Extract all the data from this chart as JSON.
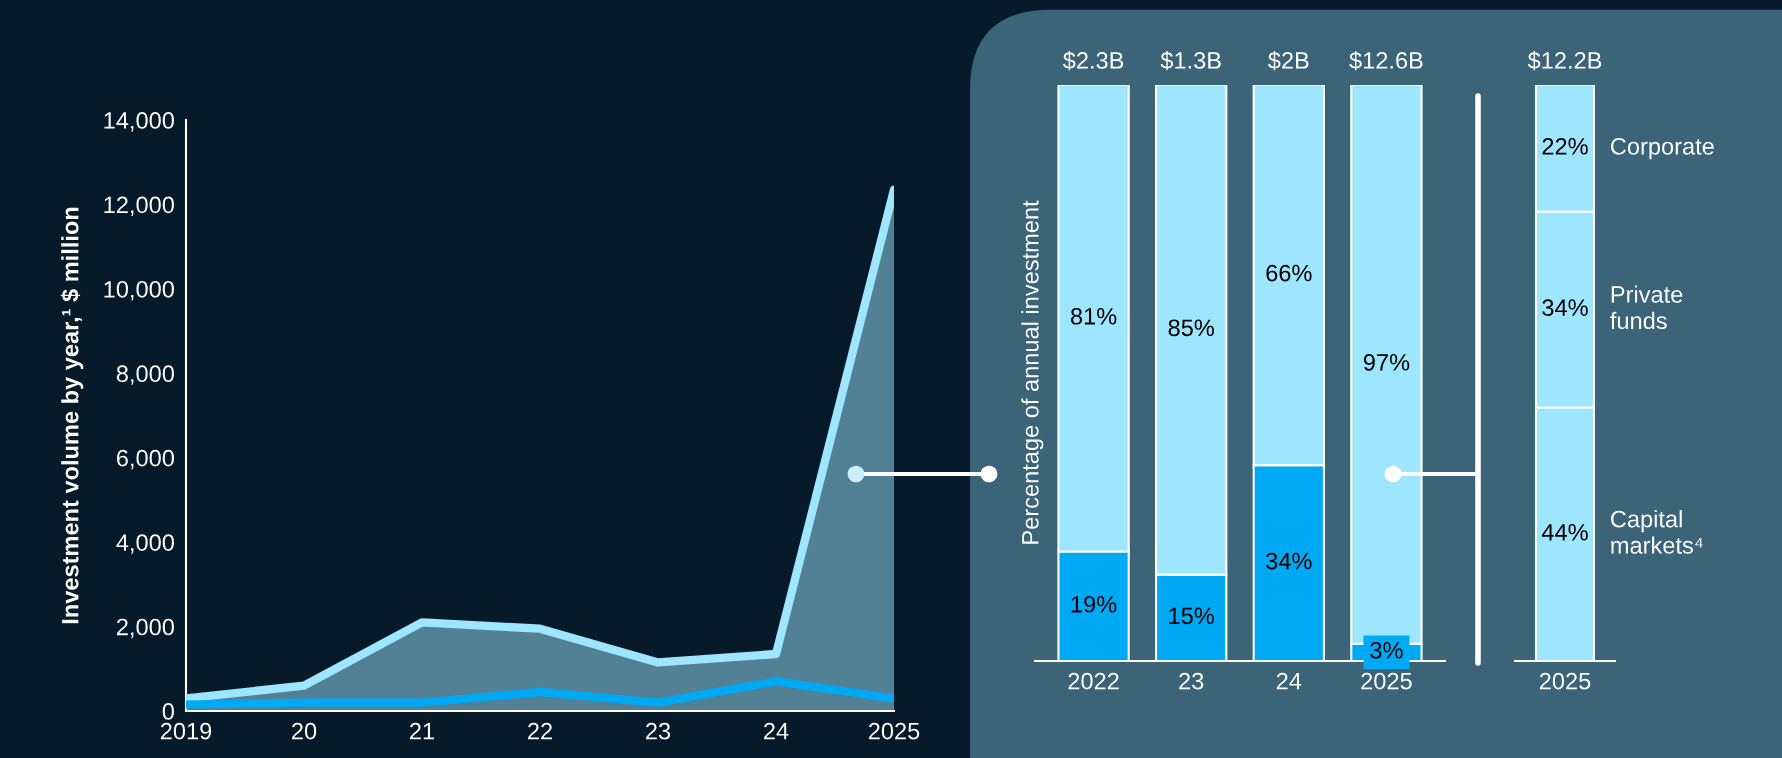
{
  "chart_data": [
    {
      "type": "line",
      "ylabel": "Investment volume by year,¹ $ million",
      "x": [
        2019,
        2020,
        2021,
        2022,
        2023,
        2024,
        2025
      ],
      "xlim": [
        2019,
        2025
      ],
      "xticks": [
        {
          "value": 2019,
          "label": "2019"
        },
        {
          "value": 2020,
          "label": "20"
        },
        {
          "value": 2021,
          "label": "21"
        },
        {
          "value": 2022,
          "label": "22"
        },
        {
          "value": 2023,
          "label": "23"
        },
        {
          "value": 2024,
          "label": "24"
        },
        {
          "value": 2025,
          "label": "2025"
        }
      ],
      "ylim": [
        0,
        14000
      ],
      "yticks": [
        0,
        {
          "value": 2000,
          "label": "2,000"
        },
        {
          "value": 4000,
          "label": "4,000"
        },
        {
          "value": 6000,
          "label": "6,000"
        },
        {
          "value": 8000,
          "label": "8,000"
        },
        {
          "value": 10000,
          "label": "10,000"
        },
        {
          "value": 12000,
          "label": "12,000"
        },
        {
          "value": 14000,
          "label": "14,000"
        }
      ],
      "grid": false,
      "legend": false,
      "series": [
        {
          "type": "area",
          "color": "#9ee6fd",
          "values": [
            300,
            600,
            2100,
            1950,
            1150,
            1350,
            12350
          ]
        },
        {
          "type": "line",
          "color": "#00a9f4",
          "values": [
            150,
            200,
            200,
            450,
            200,
            700,
            300
          ]
        }
      ]
    },
    {
      "type": "bar",
      "stacked": true,
      "ylabel": "Percentage of annual investment",
      "categories": [
        "2022",
        "23",
        "24",
        "2025"
      ],
      "ylim": [
        0,
        100
      ],
      "legend": false,
      "annotations": [
        {
          "text": "$2.3B",
          "x": "2022",
          "y": 100
        },
        {
          "text": "$1.3B",
          "x": "23",
          "y": 100
        },
        {
          "text": "$2B",
          "x": "24",
          "y": 100
        },
        {
          "text": "$12.6B",
          "x": "2025",
          "y": 100
        }
      ],
      "series": [
        {
          "color": "#00a9f4",
          "values": [
            19,
            15,
            34,
            3
          ],
          "value_labels": [
            "19%",
            "15%",
            "34%",
            "3%"
          ]
        },
        {
          "color": "#9ee6fd",
          "values": [
            81,
            85,
            66,
            97
          ],
          "value_labels": [
            "81%",
            "85%",
            "66%",
            "97%"
          ]
        }
      ]
    },
    {
      "type": "bar",
      "stacked": true,
      "categories": [
        "2025"
      ],
      "ylim": [
        0,
        100
      ],
      "legend": false,
      "annotations": [
        {
          "text": "$12.2B",
          "x": "2025",
          "y": 100
        }
      ],
      "series": [
        {
          "name": "Capital markets⁴",
          "color": "#9ee6fd",
          "values": [
            44
          ],
          "value_labels": [
            "44%"
          ]
        },
        {
          "name": "Private funds",
          "color": "#9ee6fd",
          "values": [
            34
          ],
          "value_labels": [
            "34%"
          ]
        },
        {
          "name": "Corporate",
          "color": "#9ee6fd",
          "values": [
            22
          ],
          "value_labels": [
            "22%"
          ]
        }
      ]
    }
  ]
}
